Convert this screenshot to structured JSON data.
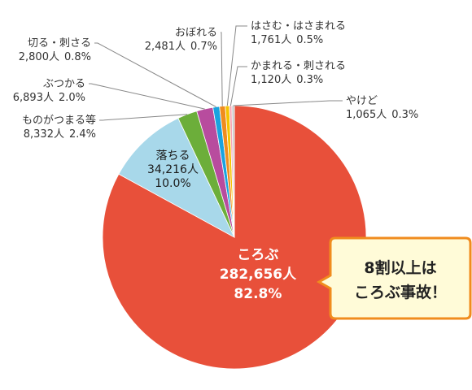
{
  "chart_data": {
    "type": "pie",
    "slices": [
      {
        "label": "ころぶ",
        "count": "282,656人",
        "percent": "82.8%",
        "value": 82.8,
        "color": "#e8503a"
      },
      {
        "label": "落ちる",
        "count": "34,216人",
        "percent": "10.0%",
        "value": 10.0,
        "color": "#a8d8ea"
      },
      {
        "label": "ものがつまる等",
        "count": "8,332人",
        "percent": "2.4%",
        "value": 2.4,
        "color": "#6cae3a"
      },
      {
        "label": "ぶつかる",
        "count": "6,893人",
        "percent": "2.0%",
        "value": 2.0,
        "color": "#b84c9e"
      },
      {
        "label": "切る・刺さる",
        "count": "2,800人",
        "percent": "0.8%",
        "value": 0.8,
        "color": "#1aa3df"
      },
      {
        "label": "おぼれる",
        "count": "2,481人",
        "percent": "0.7%",
        "value": 0.7,
        "color": "#f08c1e"
      },
      {
        "label": "はさむ・はさまれる",
        "count": "1,761人",
        "percent": "0.5%",
        "value": 0.5,
        "color": "#f5c400"
      },
      {
        "label": "かまれる・刺される",
        "count": "1,120人",
        "percent": "0.3%",
        "value": 0.3,
        "color": "#f6a6b6"
      },
      {
        "label": "やけど",
        "count": "1,065人",
        "percent": "0.3%",
        "value": 0.3,
        "color": "#c8c8c8"
      }
    ]
  },
  "callout": {
    "line1": "8割以上は",
    "line2": "ころぶ事故！"
  }
}
